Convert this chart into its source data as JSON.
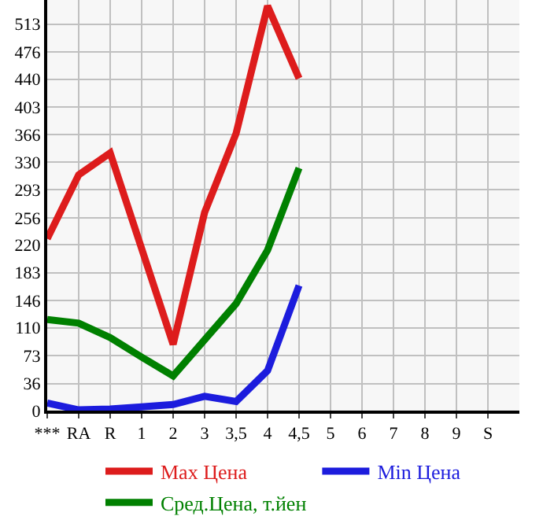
{
  "chart_data": {
    "type": "line",
    "categories": [
      "***",
      "RA",
      "R",
      "1",
      "2",
      "3",
      "3,5",
      "4",
      "4,5",
      "5",
      "6",
      "7",
      "8",
      "9",
      "S",
      null
    ],
    "series": [
      {
        "name": "Max Цена",
        "color": "#dd1c1c",
        "values": [
          228,
          313,
          342,
          215,
          88,
          263,
          368,
          537,
          441,
          null,
          null,
          null,
          null,
          null,
          null,
          null
        ]
      },
      {
        "name": "Min Цена",
        "color": "#1c1cdd",
        "values": [
          10,
          1,
          2,
          5,
          8,
          19,
          12,
          53,
          166,
          null,
          null,
          null,
          null,
          null,
          null,
          null
        ]
      },
      {
        "name": "Сред.Цена, т.йен",
        "color": "#008000",
        "values": [
          121,
          116,
          97,
          71,
          46,
          94,
          142,
          213,
          322,
          null,
          null,
          null,
          null,
          null,
          null,
          null
        ]
      }
    ],
    "ylim": [
      0,
      545
    ],
    "yticks": [
      0,
      36,
      73,
      110,
      146,
      183,
      220,
      256,
      293,
      330,
      366,
      403,
      440,
      476,
      513
    ],
    "grid": true,
    "legend": "bottom",
    "marker": "none",
    "line_style": "solid"
  }
}
